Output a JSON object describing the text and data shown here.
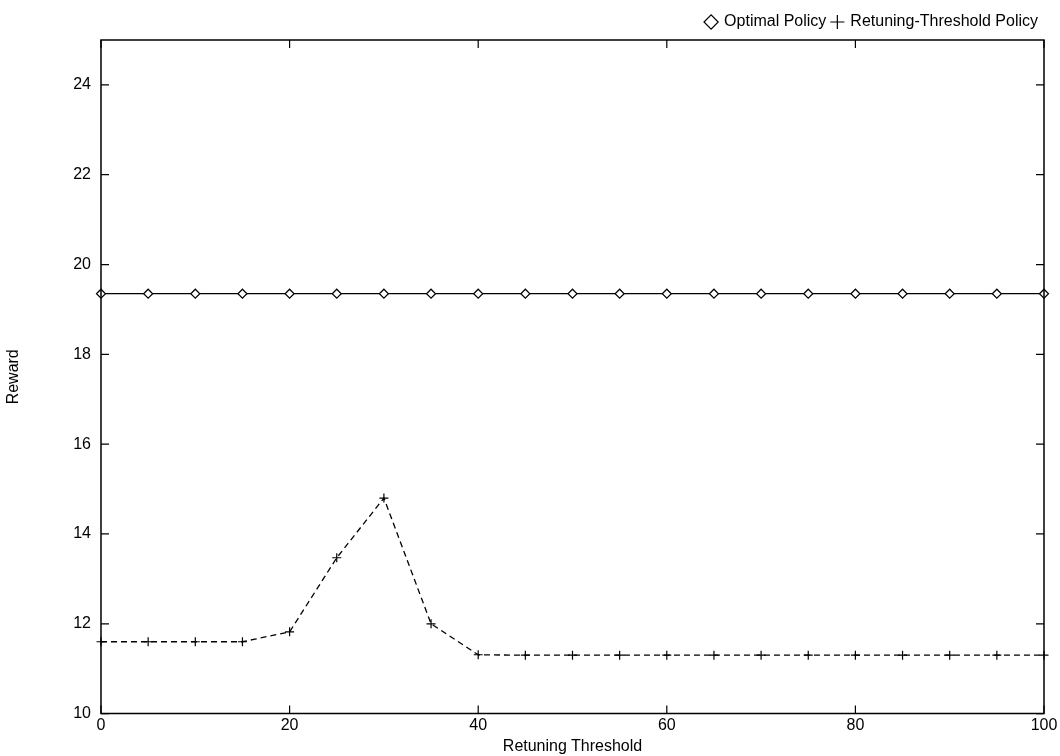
{
  "chart_data": {
    "type": "line",
    "xlabel": "Retuning Threshold",
    "ylabel": "Reward",
    "x": [
      0,
      5,
      10,
      15,
      20,
      25,
      30,
      35,
      40,
      45,
      50,
      55,
      60,
      65,
      70,
      75,
      80,
      85,
      90,
      95,
      100
    ],
    "series": [
      {
        "name": "Optimal Policy",
        "color": "#000000",
        "marker": "diamond",
        "line_style": "solid",
        "values": [
          19.35,
          19.35,
          19.35,
          19.35,
          19.35,
          19.35,
          19.35,
          19.35,
          19.35,
          19.35,
          19.35,
          19.35,
          19.35,
          19.35,
          19.35,
          19.35,
          19.35,
          19.35,
          19.35,
          19.35,
          19.35
        ]
      },
      {
        "name": "Retuning-Threshold Policy",
        "color": "#000000",
        "marker": "cross",
        "line_style": "dashed",
        "values": [
          11.6,
          11.6,
          11.6,
          11.6,
          11.82,
          13.47,
          14.8,
          12.0,
          11.31,
          11.3,
          11.3,
          11.3,
          11.3,
          11.3,
          11.3,
          11.3,
          11.3,
          11.3,
          11.3,
          11.3,
          11.3
        ]
      }
    ],
    "xlim": [
      0,
      100
    ],
    "xticks": [
      0,
      20,
      40,
      60,
      80,
      100
    ],
    "ylim": [
      10,
      25
    ],
    "yticks": [
      10,
      12,
      14,
      16,
      18,
      20,
      22,
      24
    ],
    "grid": false,
    "legend": "top right"
  }
}
